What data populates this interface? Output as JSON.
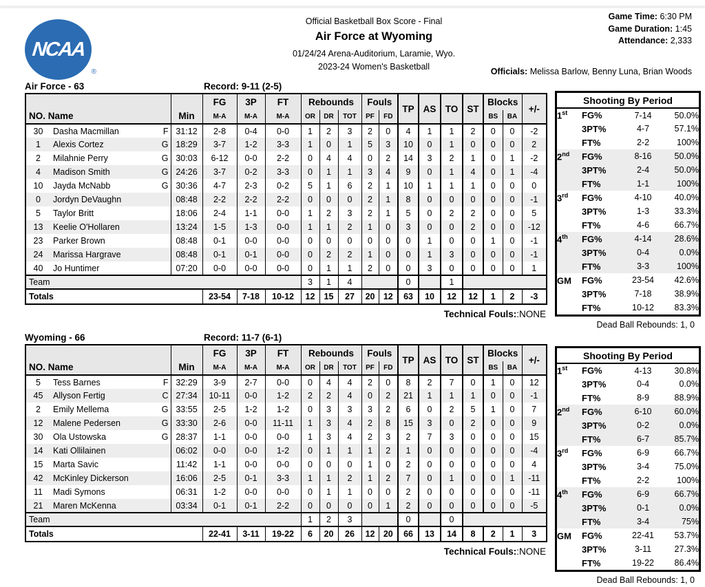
{
  "header": {
    "report_title": "Official Basketball Box Score - Final",
    "game_title": "Air Force at Wyoming",
    "venue_line": "01/24/24 Arena-Auditorium, Laramie, Wyo.",
    "season_line": "2023-24 Women's Basketball",
    "logo": {
      "text": "NCAA",
      "registered": "®",
      "color": "#2b6cb3"
    },
    "game_time_label": "Game Time:",
    "game_time": "6:30 PM",
    "duration_label": "Game Duration:",
    "duration": "1:45",
    "attendance_label": "Attendance:",
    "attendance": "2,333",
    "officials_label": "Officials:",
    "officials": "Melissa Barlow, Benny Luna, Brian Woods"
  },
  "columns": {
    "no_name": "NO. Name",
    "min": "Min",
    "fg": "FG",
    "three": "3P",
    "ft": "FT",
    "ma": "M-A",
    "rebounds": "Rebounds",
    "or": "OR",
    "dr": "DR",
    "tot": "TOT",
    "fouls": "Fouls",
    "pf": "PF",
    "fd": "FD",
    "tp": "TP",
    "assists": "AS",
    "turnovers": "TO",
    "steals": "ST",
    "blocks": "Blocks",
    "bs": "BS",
    "ba": "BA",
    "plus_minus": "+/-"
  },
  "labels": {
    "team_row": "Team",
    "totals_row": "Totals",
    "technical_fouls_label": "Technical Fouls:",
    "shooting_title": "Shooting By Period"
  },
  "air_force": {
    "title": "Air Force - 63",
    "record": "Record: 9-11 (2-5)",
    "technical_fouls_value": ":NONE",
    "dead_ball": "Dead Ball Rebounds: 1, 0",
    "players": [
      {
        "no": "30",
        "name": "Dasha Macmillan",
        "pos": "F",
        "min": "31:12",
        "fg": "2-8",
        "three": "0-4",
        "ft": "0-0",
        "or": "1",
        "dr": "2",
        "tot": "3",
        "pf": "2",
        "fd": "0",
        "tp": "4",
        "as": "1",
        "to": "1",
        "st": "2",
        "bs": "0",
        "ba": "0",
        "pm": "-2"
      },
      {
        "no": "1",
        "name": "Alexis Cortez",
        "pos": "G",
        "min": "18:29",
        "fg": "3-7",
        "three": "1-2",
        "ft": "3-3",
        "or": "1",
        "dr": "0",
        "tot": "1",
        "pf": "5",
        "fd": "3",
        "tp": "10",
        "as": "0",
        "to": "1",
        "st": "0",
        "bs": "0",
        "ba": "0",
        "pm": "2"
      },
      {
        "no": "2",
        "name": "Milahnie Perry",
        "pos": "G",
        "min": "30:03",
        "fg": "6-12",
        "three": "0-0",
        "ft": "2-2",
        "or": "0",
        "dr": "4",
        "tot": "4",
        "pf": "0",
        "fd": "2",
        "tp": "14",
        "as": "3",
        "to": "2",
        "st": "1",
        "bs": "0",
        "ba": "1",
        "pm": "-2"
      },
      {
        "no": "4",
        "name": "Madison Smith",
        "pos": "G",
        "min": "24:26",
        "fg": "3-7",
        "three": "0-2",
        "ft": "3-3",
        "or": "0",
        "dr": "1",
        "tot": "1",
        "pf": "3",
        "fd": "4",
        "tp": "9",
        "as": "0",
        "to": "1",
        "st": "4",
        "bs": "0",
        "ba": "1",
        "pm": "-4"
      },
      {
        "no": "10",
        "name": "Jayda McNabb",
        "pos": "G",
        "min": "30:36",
        "fg": "4-7",
        "three": "2-3",
        "ft": "0-2",
        "or": "5",
        "dr": "1",
        "tot": "6",
        "pf": "2",
        "fd": "1",
        "tp": "10",
        "as": "1",
        "to": "1",
        "st": "1",
        "bs": "0",
        "ba": "0",
        "pm": "0"
      },
      {
        "no": "0",
        "name": "Jordyn DeVaughn",
        "pos": "",
        "min": "08:48",
        "fg": "2-2",
        "three": "2-2",
        "ft": "2-2",
        "or": "0",
        "dr": "0",
        "tot": "0",
        "pf": "2",
        "fd": "1",
        "tp": "8",
        "as": "0",
        "to": "0",
        "st": "0",
        "bs": "0",
        "ba": "0",
        "pm": "-1"
      },
      {
        "no": "5",
        "name": "Taylor Britt",
        "pos": "",
        "min": "18:06",
        "fg": "2-4",
        "three": "1-1",
        "ft": "0-0",
        "or": "1",
        "dr": "2",
        "tot": "3",
        "pf": "2",
        "fd": "1",
        "tp": "5",
        "as": "0",
        "to": "2",
        "st": "2",
        "bs": "0",
        "ba": "0",
        "pm": "5"
      },
      {
        "no": "13",
        "name": "Keelie O'Hollaren",
        "pos": "",
        "min": "13:24",
        "fg": "1-5",
        "three": "1-3",
        "ft": "0-0",
        "or": "1",
        "dr": "1",
        "tot": "2",
        "pf": "1",
        "fd": "0",
        "tp": "3",
        "as": "0",
        "to": "0",
        "st": "2",
        "bs": "0",
        "ba": "0",
        "pm": "-12"
      },
      {
        "no": "23",
        "name": "Parker Brown",
        "pos": "",
        "min": "08:48",
        "fg": "0-1",
        "three": "0-0",
        "ft": "0-0",
        "or": "0",
        "dr": "0",
        "tot": "0",
        "pf": "0",
        "fd": "0",
        "tp": "0",
        "as": "1",
        "to": "0",
        "st": "0",
        "bs": "1",
        "ba": "0",
        "pm": "-1"
      },
      {
        "no": "24",
        "name": "Marissa Hargrave",
        "pos": "",
        "min": "08:48",
        "fg": "0-1",
        "three": "0-1",
        "ft": "0-0",
        "or": "0",
        "dr": "2",
        "tot": "2",
        "pf": "1",
        "fd": "0",
        "tp": "0",
        "as": "1",
        "to": "3",
        "st": "0",
        "bs": "0",
        "ba": "0",
        "pm": "-1"
      },
      {
        "no": "40",
        "name": "Jo Huntimer",
        "pos": "",
        "min": "07:20",
        "fg": "0-0",
        "three": "0-0",
        "ft": "0-0",
        "or": "0",
        "dr": "1",
        "tot": "1",
        "pf": "2",
        "fd": "0",
        "tp": "0",
        "as": "3",
        "to": "0",
        "st": "0",
        "bs": "0",
        "ba": "0",
        "pm": "1"
      }
    ],
    "team_row": {
      "or": "3",
      "dr": "1",
      "tot": "4",
      "tp": "0",
      "to": "1"
    },
    "totals": {
      "fg": "23-54",
      "three": "7-18",
      "ft": "10-12",
      "or": "12",
      "dr": "15",
      "tot": "27",
      "pf": "20",
      "fd": "12",
      "tp": "63",
      "as": "10",
      "to": "12",
      "st": "12",
      "bs": "1",
      "ba": "2",
      "pm": "-3"
    },
    "shooting": [
      {
        "period": "1",
        "sup": "st",
        "stats": [
          {
            "label": "FG%",
            "ma": "7-14",
            "pct": "50.0%"
          },
          {
            "label": "3PT%",
            "ma": "4-7",
            "pct": "57.1%"
          },
          {
            "label": "FT%",
            "ma": "2-2",
            "pct": "100%"
          }
        ]
      },
      {
        "period": "2",
        "sup": "nd",
        "stats": [
          {
            "label": "FG%",
            "ma": "8-16",
            "pct": "50.0%"
          },
          {
            "label": "3PT%",
            "ma": "2-4",
            "pct": "50.0%"
          },
          {
            "label": "FT%",
            "ma": "1-1",
            "pct": "100%"
          }
        ]
      },
      {
        "period": "3",
        "sup": "rd",
        "stats": [
          {
            "label": "FG%",
            "ma": "4-10",
            "pct": "40.0%"
          },
          {
            "label": "3PT%",
            "ma": "1-3",
            "pct": "33.3%"
          },
          {
            "label": "FT%",
            "ma": "4-6",
            "pct": "66.7%"
          }
        ]
      },
      {
        "period": "4",
        "sup": "th",
        "stats": [
          {
            "label": "FG%",
            "ma": "4-14",
            "pct": "28.6%"
          },
          {
            "label": "3PT%",
            "ma": "0-4",
            "pct": "0.0%"
          },
          {
            "label": "FT%",
            "ma": "3-3",
            "pct": "100%"
          }
        ]
      },
      {
        "period": "GM",
        "sup": "",
        "stats": [
          {
            "label": "FG%",
            "ma": "23-54",
            "pct": "42.6%"
          },
          {
            "label": "3PT%",
            "ma": "7-18",
            "pct": "38.9%"
          },
          {
            "label": "FT%",
            "ma": "10-12",
            "pct": "83.3%"
          }
        ]
      }
    ]
  },
  "wyoming": {
    "title": "Wyoming - 66",
    "record": "Record: 11-7 (6-1)",
    "technical_fouls_value": ":NONE",
    "dead_ball": "Dead Ball Rebounds: 1, 0",
    "players": [
      {
        "no": "5",
        "name": "Tess Barnes",
        "pos": "F",
        "min": "32:29",
        "fg": "3-9",
        "three": "2-7",
        "ft": "0-0",
        "or": "0",
        "dr": "4",
        "tot": "4",
        "pf": "2",
        "fd": "0",
        "tp": "8",
        "as": "2",
        "to": "7",
        "st": "0",
        "bs": "1",
        "ba": "0",
        "pm": "12"
      },
      {
        "no": "45",
        "name": "Allyson Fertig",
        "pos": "C",
        "min": "27:34",
        "fg": "10-11",
        "three": "0-0",
        "ft": "1-2",
        "or": "2",
        "dr": "2",
        "tot": "4",
        "pf": "0",
        "fd": "2",
        "tp": "21",
        "as": "1",
        "to": "1",
        "st": "1",
        "bs": "0",
        "ba": "0",
        "pm": "-1"
      },
      {
        "no": "2",
        "name": "Emily Mellema",
        "pos": "G",
        "min": "33:55",
        "fg": "2-5",
        "three": "1-2",
        "ft": "1-2",
        "or": "0",
        "dr": "3",
        "tot": "3",
        "pf": "3",
        "fd": "2",
        "tp": "6",
        "as": "0",
        "to": "2",
        "st": "5",
        "bs": "1",
        "ba": "0",
        "pm": "7"
      },
      {
        "no": "12",
        "name": "Malene Pedersen",
        "pos": "G",
        "min": "33:30",
        "fg": "2-6",
        "three": "0-0",
        "ft": "11-11",
        "or": "1",
        "dr": "3",
        "tot": "4",
        "pf": "2",
        "fd": "8",
        "tp": "15",
        "as": "3",
        "to": "0",
        "st": "2",
        "bs": "0",
        "ba": "0",
        "pm": "9"
      },
      {
        "no": "30",
        "name": "Ola Ustowska",
        "pos": "G",
        "min": "28:37",
        "fg": "1-1",
        "three": "0-0",
        "ft": "0-0",
        "or": "1",
        "dr": "3",
        "tot": "4",
        "pf": "2",
        "fd": "3",
        "tp": "2",
        "as": "7",
        "to": "3",
        "st": "0",
        "bs": "0",
        "ba": "0",
        "pm": "15"
      },
      {
        "no": "14",
        "name": "Kati Ollilainen",
        "pos": "",
        "min": "06:02",
        "fg": "0-0",
        "three": "0-0",
        "ft": "1-2",
        "or": "0",
        "dr": "1",
        "tot": "1",
        "pf": "1",
        "fd": "2",
        "tp": "1",
        "as": "0",
        "to": "0",
        "st": "0",
        "bs": "0",
        "ba": "0",
        "pm": "-4"
      },
      {
        "no": "15",
        "name": "Marta Savic",
        "pos": "",
        "min": "11:42",
        "fg": "1-1",
        "three": "0-0",
        "ft": "0-0",
        "or": "0",
        "dr": "0",
        "tot": "0",
        "pf": "1",
        "fd": "0",
        "tp": "2",
        "as": "0",
        "to": "0",
        "st": "0",
        "bs": "0",
        "ba": "0",
        "pm": "4"
      },
      {
        "no": "42",
        "name": "McKinley Dickerson",
        "pos": "",
        "min": "16:06",
        "fg": "2-5",
        "three": "0-1",
        "ft": "3-3",
        "or": "1",
        "dr": "1",
        "tot": "2",
        "pf": "1",
        "fd": "2",
        "tp": "7",
        "as": "0",
        "to": "1",
        "st": "0",
        "bs": "0",
        "ba": "1",
        "pm": "-11"
      },
      {
        "no": "11",
        "name": "Madi Symons",
        "pos": "",
        "min": "06:31",
        "fg": "1-2",
        "three": "0-0",
        "ft": "0-0",
        "or": "0",
        "dr": "1",
        "tot": "1",
        "pf": "0",
        "fd": "0",
        "tp": "2",
        "as": "0",
        "to": "0",
        "st": "0",
        "bs": "0",
        "ba": "0",
        "pm": "-11"
      },
      {
        "no": "21",
        "name": "Maren McKenna",
        "pos": "",
        "min": "03:34",
        "fg": "0-1",
        "three": "0-1",
        "ft": "2-2",
        "or": "0",
        "dr": "0",
        "tot": "0",
        "pf": "0",
        "fd": "1",
        "tp": "2",
        "as": "0",
        "to": "0",
        "st": "0",
        "bs": "0",
        "ba": "0",
        "pm": "-5"
      }
    ],
    "team_row": {
      "or": "1",
      "dr": "2",
      "tot": "3",
      "tp": "0",
      "to": "0"
    },
    "totals": {
      "fg": "22-41",
      "three": "3-11",
      "ft": "19-22",
      "or": "6",
      "dr": "20",
      "tot": "26",
      "pf": "12",
      "fd": "20",
      "tp": "66",
      "as": "13",
      "to": "14",
      "st": "8",
      "bs": "2",
      "ba": "1",
      "pm": "3"
    },
    "shooting": [
      {
        "period": "1",
        "sup": "st",
        "stats": [
          {
            "label": "FG%",
            "ma": "4-13",
            "pct": "30.8%"
          },
          {
            "label": "3PT%",
            "ma": "0-4",
            "pct": "0.0%"
          },
          {
            "label": "FT%",
            "ma": "8-9",
            "pct": "88.9%"
          }
        ]
      },
      {
        "period": "2",
        "sup": "nd",
        "stats": [
          {
            "label": "FG%",
            "ma": "6-10",
            "pct": "60.0%"
          },
          {
            "label": "3PT%",
            "ma": "0-2",
            "pct": "0.0%"
          },
          {
            "label": "FT%",
            "ma": "6-7",
            "pct": "85.7%"
          }
        ]
      },
      {
        "period": "3",
        "sup": "rd",
        "stats": [
          {
            "label": "FG%",
            "ma": "6-9",
            "pct": "66.7%"
          },
          {
            "label": "3PT%",
            "ma": "3-4",
            "pct": "75.0%"
          },
          {
            "label": "FT%",
            "ma": "2-2",
            "pct": "100%"
          }
        ]
      },
      {
        "period": "4",
        "sup": "th",
        "stats": [
          {
            "label": "FG%",
            "ma": "6-9",
            "pct": "66.7%"
          },
          {
            "label": "3PT%",
            "ma": "0-1",
            "pct": "0.0%"
          },
          {
            "label": "FT%",
            "ma": "3-4",
            "pct": "75%"
          }
        ]
      },
      {
        "period": "GM",
        "sup": "",
        "stats": [
          {
            "label": "FG%",
            "ma": "22-41",
            "pct": "53.7%"
          },
          {
            "label": "3PT%",
            "ma": "3-11",
            "pct": "27.3%"
          },
          {
            "label": "FT%",
            "ma": "19-22",
            "pct": "86.4%"
          }
        ]
      }
    ]
  }
}
